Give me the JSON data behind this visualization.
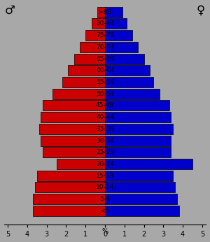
{
  "age_groups": [
    "<5",
    "5-9",
    "10-14",
    "15-19",
    "20-24",
    "25-29",
    "30-34",
    "35-39",
    "40-44",
    "45-49",
    "50-54",
    "55-59",
    "60-64",
    "65-69",
    "70-74",
    "75-79",
    "80-84",
    ">85"
  ],
  "male": [
    3.7,
    3.7,
    3.6,
    3.5,
    2.5,
    3.2,
    3.3,
    3.4,
    3.3,
    3.2,
    2.7,
    2.2,
    1.9,
    1.6,
    1.3,
    1.0,
    0.7,
    0.4
  ],
  "female": [
    3.8,
    3.7,
    3.6,
    3.5,
    4.5,
    3.4,
    3.4,
    3.5,
    3.4,
    3.3,
    2.8,
    2.5,
    2.3,
    2.0,
    1.7,
    1.4,
    1.1,
    0.9
  ],
  "male_color": "#cc0000",
  "female_color": "#0000cc",
  "background_color": "#a8a8a8",
  "bar_edge_color": "#000000",
  "male_symbol": "♂",
  "female_symbol": "♀",
  "xlim": 5.2,
  "bar_height": 0.9,
  "label_fontsize": 6.5,
  "symbol_fontsize": 12,
  "tick_fontsize": 7
}
